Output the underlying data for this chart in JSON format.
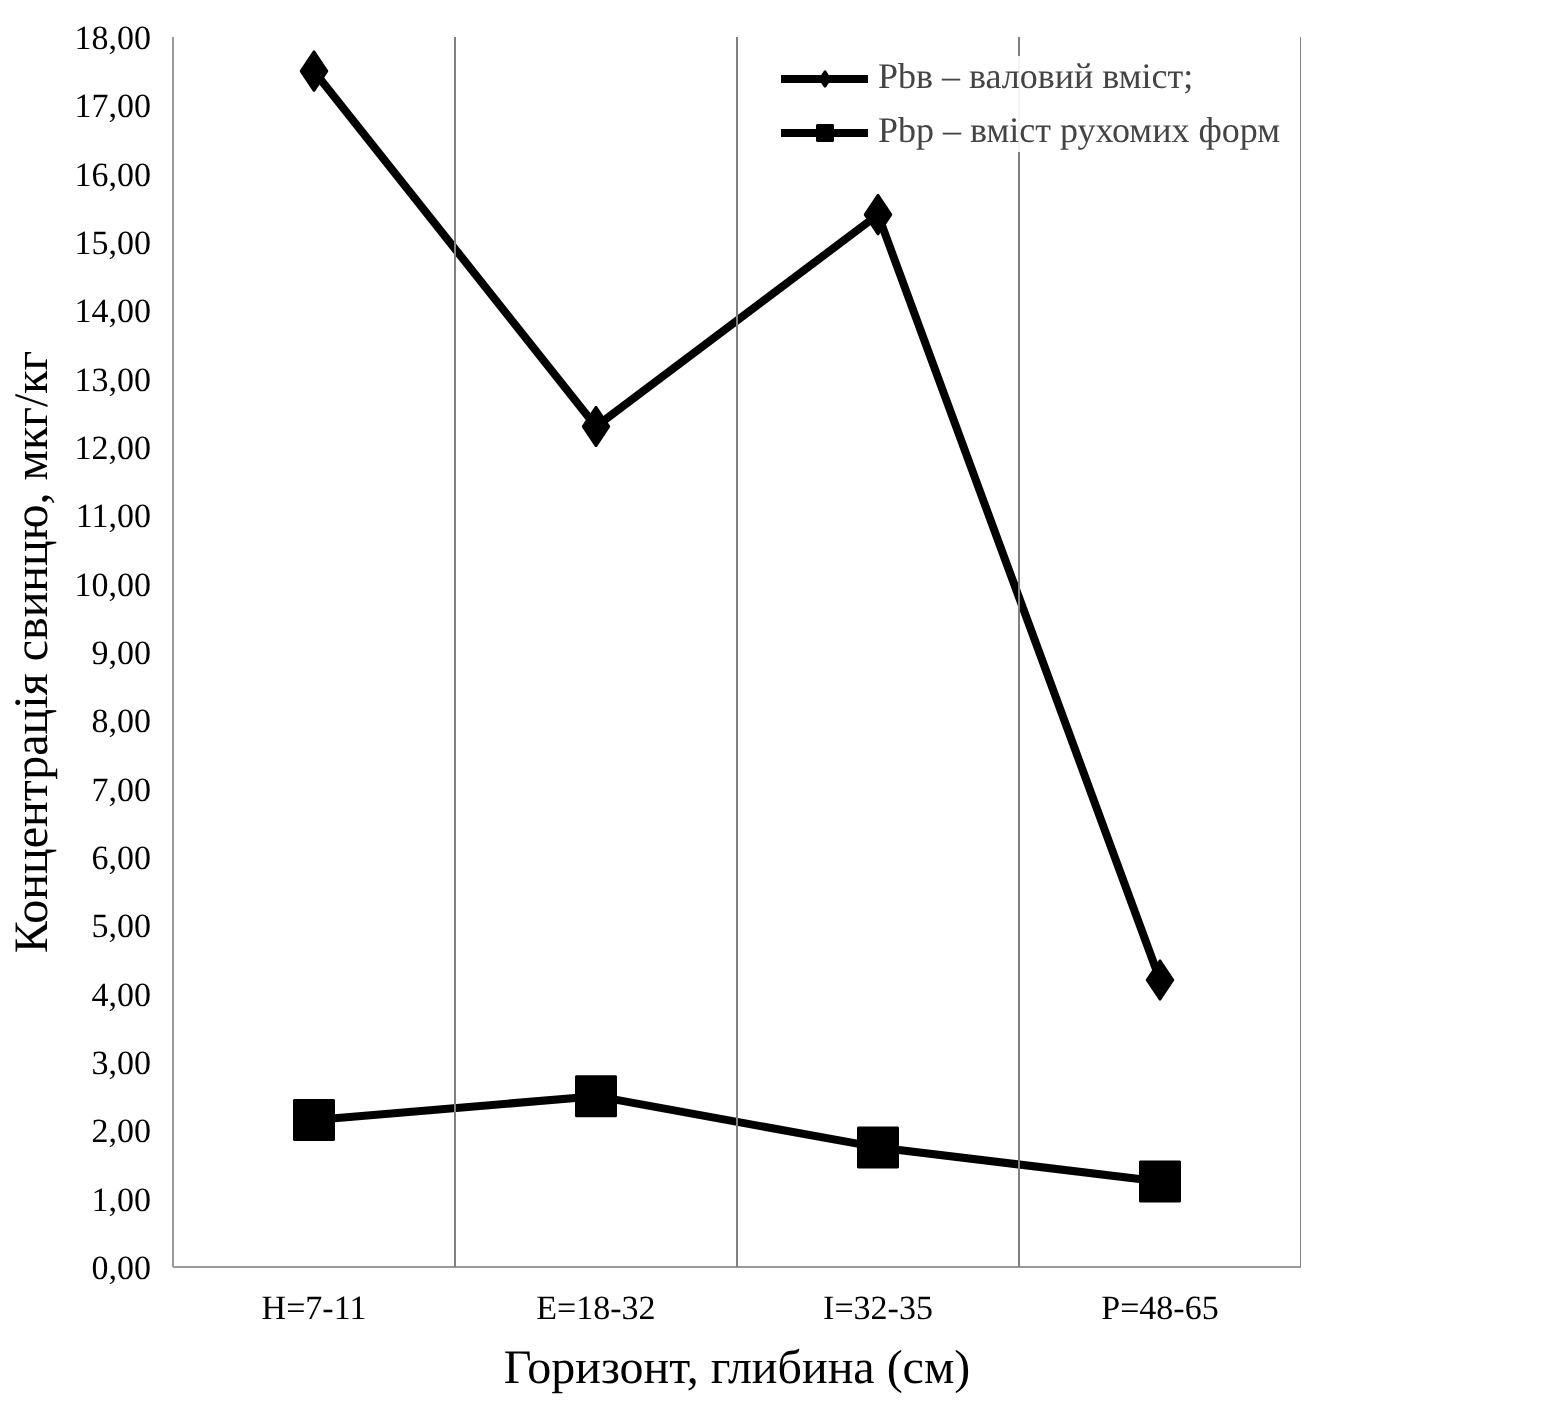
{
  "chart_data": {
    "type": "line",
    "xlabel": "Горизонт, глибина (см)",
    "ylabel": "Концентрація свинцю, мкг/кг",
    "categories": [
      "H=7-11",
      "E=18-32",
      "I=32-35",
      "P=48-65"
    ],
    "series": [
      {
        "name": "Pbв – валовий вміст;",
        "color": "#000000",
        "marker": "diamond",
        "values": [
          17.5,
          12.3,
          15.4,
          4.2
        ]
      },
      {
        "name": "Pbр – вміст рухомих форм",
        "color": "#000000",
        "marker": "square",
        "values": [
          2.15,
          2.5,
          1.75,
          1.25
        ]
      }
    ],
    "ylim": [
      0,
      18
    ],
    "yticks": [
      {
        "value": 0,
        "label": "0,00"
      },
      {
        "value": 1,
        "label": "1,00"
      },
      {
        "value": 2,
        "label": "2,00"
      },
      {
        "value": 3,
        "label": "3,00"
      },
      {
        "value": 4,
        "label": "4,00"
      },
      {
        "value": 5,
        "label": "5,00"
      },
      {
        "value": 6,
        "label": "6,00"
      },
      {
        "value": 7,
        "label": "7,00"
      },
      {
        "value": 8,
        "label": "8,00"
      },
      {
        "value": 9,
        "label": "9,00"
      },
      {
        "value": 10,
        "label": "10,00"
      },
      {
        "value": 11,
        "label": "11,00"
      },
      {
        "value": 12,
        "label": "12,00"
      },
      {
        "value": 13,
        "label": "13,00"
      },
      {
        "value": 14,
        "label": "14,00"
      },
      {
        "value": 15,
        "label": "15,00"
      },
      {
        "value": 16,
        "label": "16,00"
      },
      {
        "value": 17,
        "label": "17,00"
      },
      {
        "value": 18,
        "label": "18,00"
      }
    ],
    "grid": "x",
    "legend": "top right",
    "line_style": "solid"
  }
}
